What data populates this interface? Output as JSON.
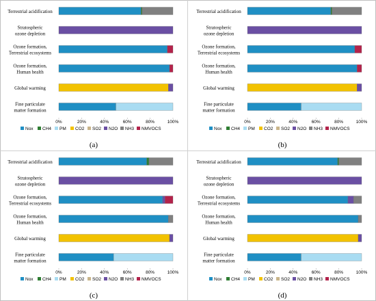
{
  "colors": {
    "Nox": "#1f8fc4",
    "CH4": "#2e7d32",
    "PM": "#a9dcf2",
    "CO2": "#f2c200",
    "SO2": "#c9b58a",
    "N2O": "#6a4fa3",
    "NH3": "#808080",
    "NMVOCS": "#b3234b"
  },
  "chart_data": [
    {
      "type": "bar",
      "orientation": "horizontal",
      "stacked": true,
      "panel_label": "(a)",
      "categories": [
        "Terrestrial acidification",
        "Stratospheric ozone depletion",
        "Ozone formation, Terrestrial ecosystems",
        "Ozone formation, Human health",
        "Global warming",
        "Fine particulate matter formation"
      ],
      "xlim": [
        0,
        100
      ],
      "xticks": [
        "0%",
        "20%",
        "40%",
        "60%",
        "80%",
        "100%"
      ],
      "legend": [
        "Nox",
        "CH4",
        "PM",
        "CO2",
        "SO2",
        "N2O",
        "NH3",
        "NMVOCS"
      ],
      "series": [
        {
          "name": "Nox",
          "values": [
            72,
            0,
            95,
            97,
            0,
            50
          ]
        },
        {
          "name": "CH4",
          "values": [
            1,
            0,
            0,
            0,
            0,
            0
          ]
        },
        {
          "name": "PM",
          "values": [
            0,
            0,
            0,
            0,
            0,
            50
          ]
        },
        {
          "name": "CO2",
          "values": [
            0,
            0,
            0,
            0,
            96,
            0
          ]
        },
        {
          "name": "SO2",
          "values": [
            0,
            0,
            0,
            0,
            0,
            0
          ]
        },
        {
          "name": "N2O",
          "values": [
            0,
            100,
            0,
            0,
            4,
            0
          ]
        },
        {
          "name": "NH3",
          "values": [
            27,
            0,
            0,
            0,
            0,
            0
          ]
        },
        {
          "name": "NMVOCS",
          "values": [
            0,
            0,
            5,
            3,
            0,
            0
          ]
        }
      ]
    },
    {
      "type": "bar",
      "orientation": "horizontal",
      "stacked": true,
      "panel_label": "(b)",
      "categories": [
        "Terrestrial acidification",
        "Stratospheric ozone depletion",
        "Ozone formation, Terrestrial ecosystems",
        "Ozone formation, Human health",
        "Global warming",
        "Fine particulate matter formation"
      ],
      "xlim": [
        0,
        100
      ],
      "xticks": [
        "0%",
        "20%",
        "40%",
        "60%",
        "80%",
        "100%"
      ],
      "legend": [
        "Nox",
        "CH4",
        "PM",
        "CO2",
        "SO2",
        "N2O",
        "NH3",
        "NMVOCS"
      ],
      "series": [
        {
          "name": "Nox",
          "values": [
            73,
            0,
            94,
            96,
            0,
            47
          ]
        },
        {
          "name": "CH4",
          "values": [
            1,
            0,
            0,
            0,
            0,
            0
          ]
        },
        {
          "name": "PM",
          "values": [
            0,
            0,
            0,
            0,
            0,
            53
          ]
        },
        {
          "name": "CO2",
          "values": [
            0,
            0,
            0,
            0,
            96,
            0
          ]
        },
        {
          "name": "SO2",
          "values": [
            0,
            0,
            0,
            0,
            0,
            0
          ]
        },
        {
          "name": "N2O",
          "values": [
            0,
            100,
            0,
            0,
            4,
            0
          ]
        },
        {
          "name": "NH3",
          "values": [
            26,
            0,
            0,
            0,
            0,
            0
          ]
        },
        {
          "name": "NMVOCS",
          "values": [
            0,
            0,
            6,
            4,
            0,
            0
          ]
        }
      ]
    },
    {
      "type": "bar",
      "orientation": "horizontal",
      "stacked": true,
      "panel_label": "(c)",
      "categories": [
        "Terrestrial acidification",
        "Stratospheric ozone depletion",
        "Ozone formation, Terrestrial ecosystems",
        "Ozone formation, Human health",
        "Global warming",
        "Fine particulate matter formation"
      ],
      "xlim": [
        0,
        100
      ],
      "xticks": [
        "0%",
        "20%",
        "40%",
        "60%",
        "80%",
        "100%"
      ],
      "legend": [
        "Nox",
        "CH4",
        "PM",
        "CO2",
        "SO2",
        "N2O",
        "NH3",
        "NMVOCS"
      ],
      "series": [
        {
          "name": "Nox",
          "values": [
            77,
            0,
            91,
            96,
            0,
            48
          ]
        },
        {
          "name": "CH4",
          "values": [
            2,
            0,
            0,
            0,
            0,
            0
          ]
        },
        {
          "name": "PM",
          "values": [
            0,
            0,
            0,
            0,
            0,
            52
          ]
        },
        {
          "name": "CO2",
          "values": [
            0,
            0,
            0,
            0,
            97,
            0
          ]
        },
        {
          "name": "SO2",
          "values": [
            0,
            0,
            0,
            0,
            0,
            0
          ]
        },
        {
          "name": "N2O",
          "values": [
            0,
            100,
            2,
            0,
            3,
            0
          ]
        },
        {
          "name": "NH3",
          "values": [
            21,
            0,
            0,
            4,
            0,
            0
          ]
        },
        {
          "name": "NMVOCS",
          "values": [
            0,
            0,
            7,
            0,
            0,
            0
          ]
        }
      ]
    },
    {
      "type": "bar",
      "orientation": "horizontal",
      "stacked": true,
      "panel_label": "(d)",
      "categories": [
        "Terrestrial acidification",
        "Stratospheric ozone depletion",
        "Ozone formation, Terrestrial ecosystems",
        "Ozone formation, Human health",
        "Global warming",
        "Fine particulate matter formation"
      ],
      "xlim": [
        0,
        100
      ],
      "xticks": [
        "0%",
        "20%",
        "40%",
        "60%",
        "80%",
        "100%"
      ],
      "legend": [
        "Nox",
        "CH4",
        "PM",
        "CO2",
        "SO2",
        "N2O",
        "NH3",
        "NMVOCS"
      ],
      "series": [
        {
          "name": "Nox",
          "values": [
            79,
            0,
            88,
            97,
            0,
            47
          ]
        },
        {
          "name": "CH4",
          "values": [
            1,
            0,
            0,
            0,
            0,
            0
          ]
        },
        {
          "name": "PM",
          "values": [
            0,
            0,
            0,
            0,
            0,
            53
          ]
        },
        {
          "name": "CO2",
          "values": [
            0,
            0,
            0,
            0,
            97,
            0
          ]
        },
        {
          "name": "SO2",
          "values": [
            0,
            0,
            0,
            0,
            0,
            0
          ]
        },
        {
          "name": "N2O",
          "values": [
            0,
            100,
            5,
            0,
            3,
            0
          ]
        },
        {
          "name": "NH3",
          "values": [
            20,
            0,
            7,
            3,
            0,
            0
          ]
        },
        {
          "name": "NMVOCS",
          "values": [
            0,
            0,
            0,
            0,
            0,
            0
          ]
        }
      ]
    }
  ]
}
